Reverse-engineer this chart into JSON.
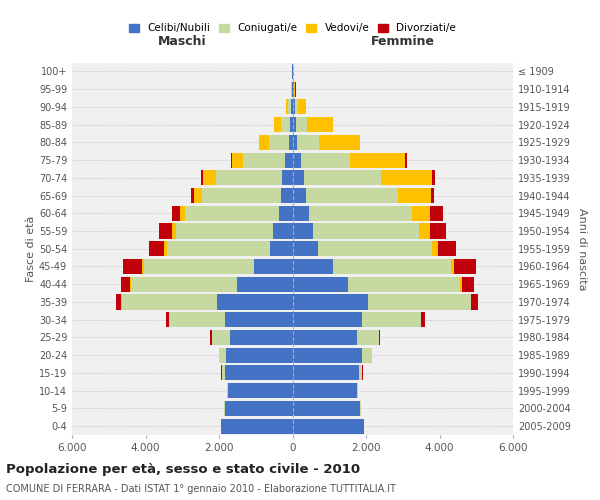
{
  "age_groups": [
    "0-4",
    "5-9",
    "10-14",
    "15-19",
    "20-24",
    "25-29",
    "30-34",
    "35-39",
    "40-44",
    "45-49",
    "50-54",
    "55-59",
    "60-64",
    "65-69",
    "70-74",
    "75-79",
    "80-84",
    "85-89",
    "90-94",
    "95-99",
    "100+"
  ],
  "birth_years": [
    "2005-2009",
    "2000-2004",
    "1995-1999",
    "1990-1994",
    "1985-1989",
    "1980-1984",
    "1975-1979",
    "1970-1974",
    "1965-1969",
    "1960-1964",
    "1955-1959",
    "1950-1954",
    "1945-1949",
    "1940-1944",
    "1935-1939",
    "1930-1934",
    "1925-1929",
    "1920-1924",
    "1915-1919",
    "1910-1914",
    "≤ 1909"
  ],
  "male": {
    "celibi": [
      1950,
      1850,
      1750,
      1850,
      1800,
      1700,
      1850,
      2050,
      1500,
      1050,
      620,
      520,
      370,
      310,
      280,
      200,
      100,
      60,
      40,
      20,
      10
    ],
    "coniugati": [
      5,
      10,
      30,
      80,
      200,
      500,
      1500,
      2600,
      2900,
      3000,
      2800,
      2650,
      2550,
      2150,
      1800,
      1150,
      550,
      250,
      80,
      20,
      5
    ],
    "vedovi": [
      0,
      0,
      0,
      0,
      0,
      2,
      5,
      10,
      20,
      50,
      80,
      100,
      150,
      220,
      350,
      300,
      250,
      180,
      50,
      10,
      2
    ],
    "divorziati": [
      0,
      0,
      2,
      5,
      10,
      30,
      100,
      150,
      250,
      500,
      400,
      350,
      200,
      80,
      50,
      30,
      15,
      10,
      5,
      2,
      0
    ]
  },
  "female": {
    "nubili": [
      1950,
      1850,
      1750,
      1800,
      1900,
      1750,
      1900,
      2050,
      1500,
      1100,
      700,
      550,
      450,
      360,
      300,
      220,
      130,
      90,
      60,
      30,
      15
    ],
    "coniugate": [
      5,
      10,
      30,
      100,
      250,
      600,
      1600,
      2800,
      3050,
      3200,
      3100,
      2900,
      2800,
      2500,
      2100,
      1350,
      600,
      300,
      100,
      20,
      5
    ],
    "vedove": [
      0,
      0,
      0,
      0,
      2,
      5,
      10,
      20,
      50,
      100,
      150,
      280,
      500,
      900,
      1400,
      1500,
      1100,
      700,
      200,
      30,
      5
    ],
    "divorziate": [
      0,
      0,
      2,
      5,
      10,
      30,
      100,
      180,
      350,
      600,
      500,
      450,
      350,
      100,
      80,
      40,
      20,
      15,
      5,
      2,
      0
    ]
  },
  "colors": {
    "celibi": "#4472c4",
    "coniugati": "#c5d9a0",
    "vedovi": "#ffc000",
    "divorziati": "#c0000b"
  },
  "title": "Popolazione per età, sesso e stato civile - 2010",
  "subtitle": "COMUNE DI FERRARA - Dati ISTAT 1° gennaio 2010 - Elaborazione TUTTITALIA.IT",
  "xlabel_left": "Maschi",
  "xlabel_right": "Femmine",
  "ylabel": "Fasce di età",
  "ylabel_right": "Anni di nascita",
  "xlim": 6000,
  "legend_labels": [
    "Celibi/Nubili",
    "Coniugati/e",
    "Vedovi/e",
    "Divorziati/e"
  ],
  "bg_color": "#ffffff",
  "grid_color": "#cccccc"
}
